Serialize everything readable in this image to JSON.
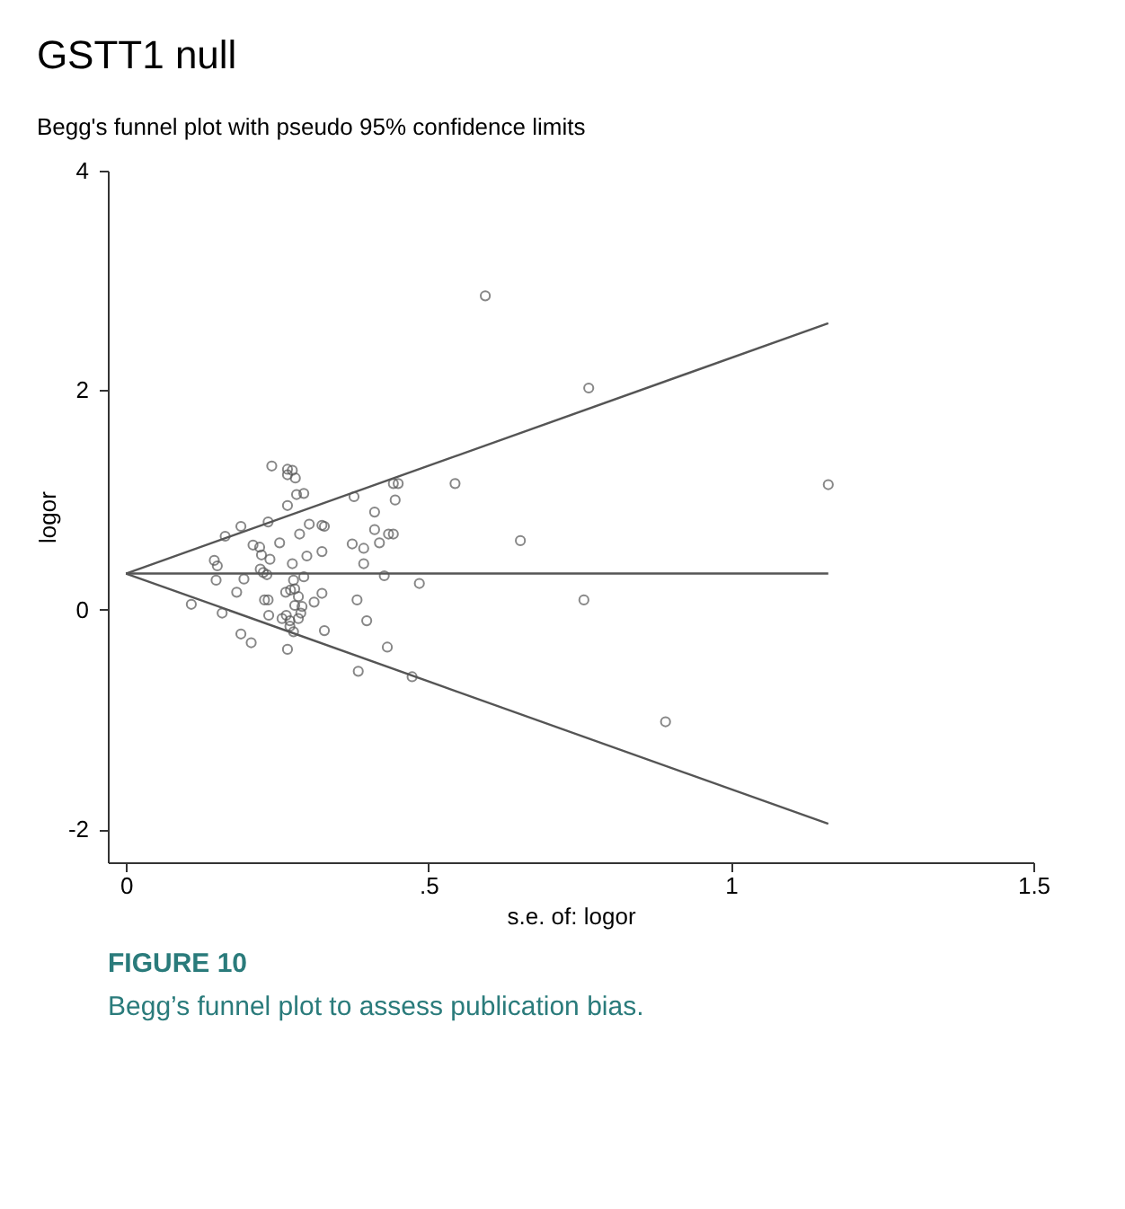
{
  "chart_data": {
    "type": "scatter",
    "title": "GSTT1 null",
    "subtitle": "Begg's funnel plot with pseudo 95% confidence limits",
    "xlabel": "s.e. of: logor",
    "ylabel": "logor",
    "xlim": [
      -0.03,
      1.5
    ],
    "ylim": [
      -2.3,
      4
    ],
    "xticks": [
      0,
      {
        "value": 0.5,
        "label": ".5"
      },
      1,
      1.5
    ],
    "yticks": [
      -2,
      0,
      2,
      4
    ],
    "grid": false,
    "annotations": [
      "FIGURE 10",
      "Begg’s funnel plot to assess publication bias."
    ],
    "series": [
      {
        "color": "#555555",
        "marker": "circle",
        "x": [
          0.241,
          0.267,
          0.275,
          0.267,
          0.28,
          0.282,
          0.294,
          0.267,
          0.377,
          0.442,
          0.45,
          0.445,
          0.544,
          0.411,
          0.411,
          0.434,
          0.442,
          0.419,
          0.374,
          0.393,
          0.393,
          0.427,
          0.485,
          0.19,
          0.164,
          0.235,
          0.303,
          0.324,
          0.328,
          0.287,
          0.254,
          0.21,
          0.221,
          0.224,
          0.238,
          0.299,
          0.324,
          0.275,
          0.146,
          0.151,
          0.222,
          0.227,
          0.233,
          0.149,
          0.195,
          0.277,
          0.294,
          0.272,
          0.279,
          0.264,
          0.285,
          0.324,
          0.183,
          0.108,
          0.229,
          0.235,
          0.279,
          0.291,
          0.311,
          0.382,
          0.289,
          0.159,
          0.236,
          0.265,
          0.258,
          0.271,
          0.285,
          0.271,
          0.277,
          0.328,
          0.398,
          0.19,
          0.207,
          0.267,
          0.432,
          0.384,
          0.473,
          0.892,
          0.652,
          0.757,
          1.161,
          0.765,
          0.594
        ],
        "values": [
          1.31,
          1.28,
          1.27,
          1.23,
          1.2,
          1.05,
          1.06,
          0.95,
          1.03,
          1.15,
          1.15,
          1.0,
          1.15,
          0.89,
          0.73,
          0.69,
          0.69,
          0.61,
          0.6,
          0.56,
          0.42,
          0.31,
          0.24,
          0.76,
          0.67,
          0.8,
          0.78,
          0.77,
          0.76,
          0.69,
          0.61,
          0.59,
          0.57,
          0.5,
          0.46,
          0.49,
          0.53,
          0.42,
          0.45,
          0.4,
          0.37,
          0.34,
          0.32,
          0.27,
          0.28,
          0.27,
          0.3,
          0.18,
          0.19,
          0.16,
          0.12,
          0.15,
          0.16,
          0.05,
          0.09,
          0.09,
          0.04,
          0.03,
          0.07,
          0.09,
          -0.03,
          -0.03,
          -0.05,
          -0.05,
          -0.08,
          -0.1,
          -0.08,
          -0.15,
          -0.2,
          -0.19,
          -0.1,
          -0.22,
          -0.3,
          -0.36,
          -0.34,
          -0.56,
          -0.61,
          -1.02,
          0.63,
          0.09,
          1.14,
          2.02,
          2.86
        ]
      },
      {
        "type": "line",
        "marker": "none",
        "color": "#555555",
        "line_style": "solid",
        "x": [
          0,
          1.161
        ],
        "values": [
          0.33,
          0.33
        ]
      },
      {
        "type": "line",
        "marker": "none",
        "color": "#555555",
        "line_style": "solid",
        "x": [
          0,
          1.161
        ],
        "values": [
          0.33,
          2.61
        ]
      },
      {
        "type": "line",
        "marker": "none",
        "color": "#555555",
        "line_style": "solid",
        "x": [
          0,
          1.161
        ],
        "values": [
          0.33,
          -1.95
        ]
      }
    ]
  }
}
